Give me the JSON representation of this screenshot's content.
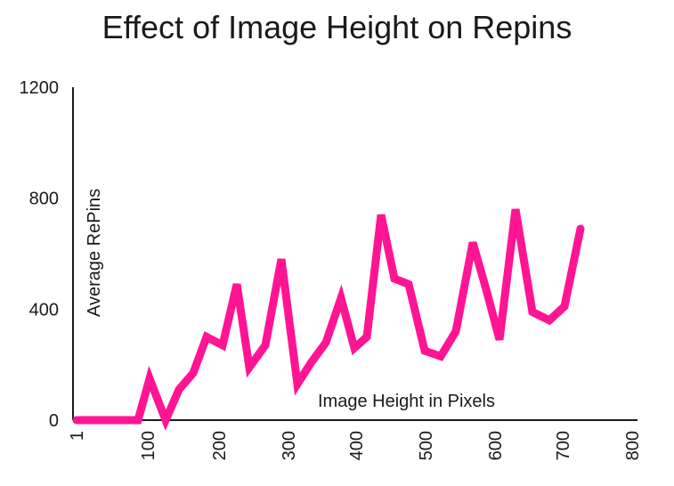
{
  "chart_data": {
    "type": "line",
    "title": "Effect of Image Height on Repins",
    "xlabel": "Image Height in Pixels",
    "ylabel": "Average RePins",
    "xlim": [
      1,
      800
    ],
    "ylim": [
      0,
      1200
    ],
    "x_ticks": [
      1,
      100,
      200,
      300,
      400,
      500,
      600,
      700,
      800
    ],
    "y_ticks": [
      0,
      400,
      800,
      1200
    ],
    "grid": false,
    "color": "#FF1493",
    "series": [
      {
        "x": [
          1,
          25,
          50,
          75,
          100,
          125,
          150,
          175,
          200,
          225,
          250,
          275,
          300,
          325,
          350,
          375,
          400,
          425,
          450,
          475,
          500,
          525,
          550,
          575,
          600,
          625,
          650,
          675,
          700,
          725,
          750,
          775,
          800,
          825
        ],
        "values": [
          0,
          0,
          0,
          0,
          150,
          0,
          110,
          170,
          300,
          270,
          490,
          190,
          270,
          580,
          130,
          210,
          280,
          440,
          260,
          300,
          740,
          510,
          490,
          250,
          230,
          320,
          640,
          460,
          290,
          760,
          390,
          360,
          410,
          690
        ]
      }
    ]
  }
}
